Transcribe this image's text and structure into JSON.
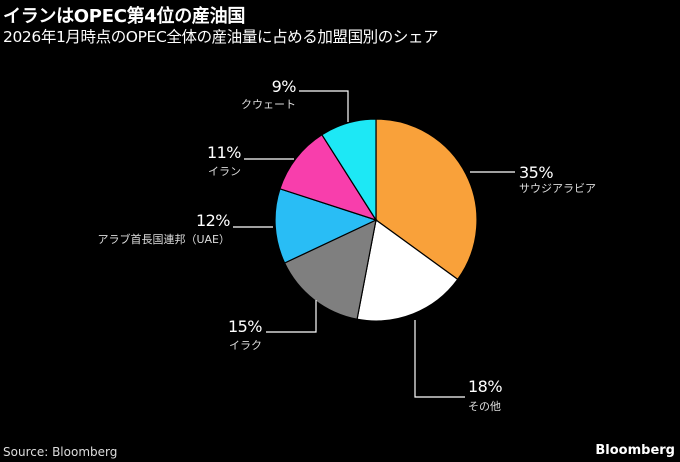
{
  "chart_data": {
    "type": "pie",
    "title": "イランはOPEC第4位の産油国",
    "subtitle": "2026年1月時点のOPEC全体の産油量に占める加盟国別のシェア",
    "unit": "%",
    "slices": [
      {
        "name": "サウジアラビア",
        "value": 35,
        "label": "35%",
        "color": "#f9a13a"
      },
      {
        "name": "その他",
        "value": 18,
        "label": "18%",
        "color": "#ffffff"
      },
      {
        "name": "イラク",
        "value": 15,
        "label": "15%",
        "color": "#7f7f7f"
      },
      {
        "name": "アラブ首長国連邦（UAE）",
        "value": 12,
        "label": "12%",
        "color": "#29bdf5"
      },
      {
        "name": "イラン",
        "value": 11,
        "label": "11%",
        "color": "#f83eac"
      },
      {
        "name": "クウェート",
        "value": 9,
        "label": "9%",
        "color": "#1de8f5"
      }
    ],
    "start": "12 o'clock, clockwise"
  },
  "footer": {
    "source": "Source: Bloomberg",
    "brand": "Bloomberg"
  }
}
